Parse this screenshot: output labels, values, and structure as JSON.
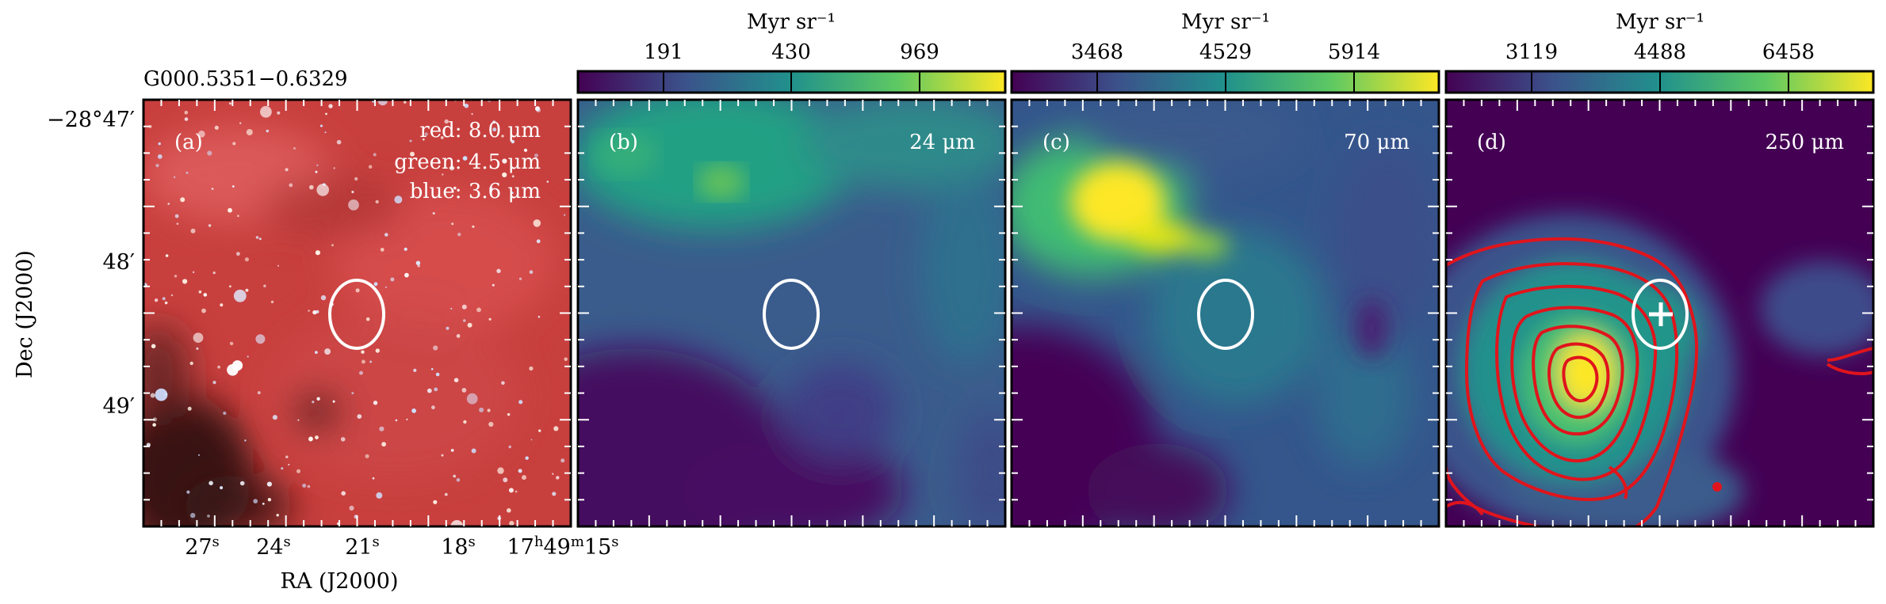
{
  "figure": {
    "source_label": "G000.5351−0.6329",
    "axes": {
      "xlabel": "RA (J2000)",
      "ylabel": "Dec (J2000)",
      "x_ticks": [
        {
          "main": "27",
          "sup": "s"
        },
        {
          "main": "24",
          "sup": "s"
        },
        {
          "main": "21",
          "sup": "s"
        },
        {
          "main": "18",
          "sup": "s"
        },
        {
          "main": "17",
          "sup": "h",
          "main2": "49",
          "sup2": "m",
          "main3": "15",
          "sup3": "s"
        }
      ],
      "y_ticks": [
        "−28°47′",
        "48′",
        "49′"
      ]
    },
    "panels": [
      {
        "id": "a",
        "label": "(a)",
        "bands": [
          "red: 8.0 μm",
          "green: 4.5 μm",
          "blue: 3.6 μm"
        ]
      },
      {
        "id": "b",
        "label": "(b)",
        "band": "24 μm"
      },
      {
        "id": "c",
        "label": "(c)",
        "band": "70 μm"
      },
      {
        "id": "d",
        "label": "(d)",
        "band": "250 μm"
      }
    ],
    "colorbars": [
      {
        "panel": "b",
        "unit": "Myr sr⁻¹",
        "ticks": [
          "191",
          "430",
          "969"
        ]
      },
      {
        "panel": "c",
        "unit": "Myr sr⁻¹",
        "ticks": [
          "3468",
          "4529",
          "5914"
        ]
      },
      {
        "panel": "d",
        "unit": "Myr sr⁻¹",
        "ticks": [
          "3119",
          "4488",
          "6458"
        ]
      }
    ],
    "colors": {
      "viridis": [
        "#440154",
        "#3b528b",
        "#21918c",
        "#5ec962",
        "#fde725"
      ],
      "contour": "#e0141c",
      "ellipse": "#ffffff"
    }
  }
}
